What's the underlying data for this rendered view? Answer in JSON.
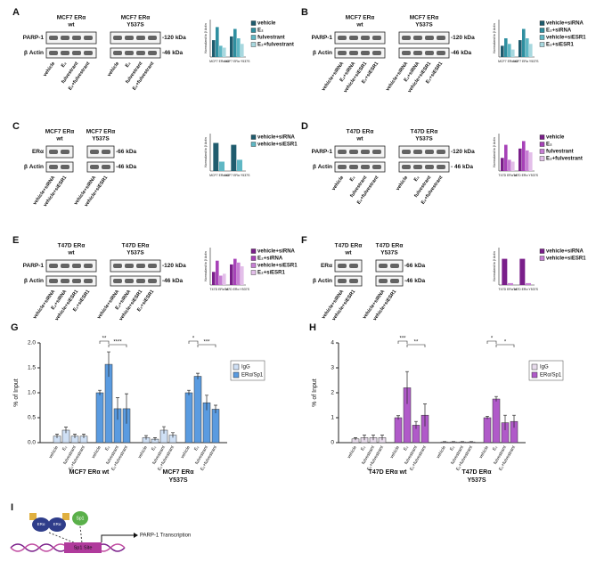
{
  "panels": [
    {
      "letter": "A",
      "blots": [
        [
          "MCF7 ERα",
          "wt"
        ],
        [
          "MCF7 ERα",
          "Y537S"
        ]
      ],
      "bands": [
        "PARP-1",
        "β Actin"
      ],
      "kda": [
        "-120 kDa",
        "-46 kDa"
      ],
      "lanes": [
        "vehicle",
        "E₂",
        "fulvestrant",
        "E₂+fulvestrant"
      ],
      "chart": {
        "type": "bar",
        "y_label": "Normalized to β Actin",
        "groups": [
          "MCF7 ERα wt",
          "MCF7 ERα Y537S"
        ],
        "ylim": [
          0,
          1
        ],
        "series": [
          {
            "name": "vehicle",
            "color": "#1f5c6e",
            "values": [
              0.45,
              0.55
            ]
          },
          {
            "name": "E₂",
            "color": "#2f8fa0",
            "values": [
              0.8,
              0.75
            ]
          },
          {
            "name": "fulvestrant",
            "color": "#5fb7c4",
            "values": [
              0.3,
              0.5
            ]
          },
          {
            "name": "E₂+fulvestrant",
            "color": "#a8d8df",
            "values": [
              0.25,
              0.35
            ]
          }
        ]
      }
    },
    {
      "letter": "B",
      "blots": [
        [
          "MCF7 ERα",
          "wt"
        ],
        [
          "MCF7 ERα",
          "Y537S"
        ]
      ],
      "bands": [
        "PARP-1",
        "β Actin"
      ],
      "kda": [
        "-120 kDa",
        "-46 kDa"
      ],
      "lanes": [
        "vehicle+siRNA",
        "E₂+siRNA",
        "vehicle+siESR1",
        "E₂+siESR1"
      ],
      "chart": {
        "type": "bar",
        "y_label": "Normalized to β Actin",
        "groups": [
          "MCF7 ERα wt",
          "MCF7 ERα Y537S"
        ],
        "ylim": [
          0,
          1
        ],
        "series": [
          {
            "name": "vehicle+siRNA",
            "color": "#1f5c6e",
            "values": [
              0.3,
              0.45
            ]
          },
          {
            "name": "E₂+siRNA",
            "color": "#2f8fa0",
            "values": [
              0.5,
              0.75
            ]
          },
          {
            "name": "vehicle+siESR1",
            "color": "#5fb7c4",
            "values": [
              0.35,
              0.5
            ]
          },
          {
            "name": "E₂+siESR1",
            "color": "#a8d8df",
            "values": [
              0.2,
              0.35
            ]
          }
        ]
      }
    },
    {
      "letter": "C",
      "blots": [
        [
          "MCF7 ERα",
          "wt"
        ],
        [
          "MCF7 ERα",
          "Y537S"
        ]
      ],
      "bands": [
        "ERα",
        "β Actin"
      ],
      "kda": [
        "-66 kDa",
        "-46 kDa"
      ],
      "lanes": [
        "vehicle+siRNA",
        "vehicle+siESR1"
      ],
      "chart": {
        "type": "bar",
        "y_label": "Normalized to β Actin",
        "groups": [
          "MCF7 ERα wt",
          "MCF7 ERα Y537S"
        ],
        "ylim": [
          0,
          1
        ],
        "series": [
          {
            "name": "vehicle+siRNA",
            "color": "#1f5c6e",
            "values": [
              0.75,
              0.7
            ]
          },
          {
            "name": "vehicle+siESR1",
            "color": "#5fb7c4",
            "values": [
              0.25,
              0.3
            ]
          }
        ]
      }
    },
    {
      "letter": "D",
      "blots": [
        [
          "T47D ERα",
          "wt"
        ],
        [
          "T47D ERα",
          "Y537S"
        ]
      ],
      "bands": [
        "PARP-1",
        "β Actin"
      ],
      "kda": [
        "-120 kDa",
        "- 46 kDa"
      ],
      "lanes": [
        "vehicle",
        "E₂",
        "fulvestrant",
        "E₂+fulvestrant"
      ],
      "chart": {
        "type": "bar",
        "y_label": "Normalized to β Actin",
        "groups": [
          "T47D ERα wt",
          "T47D ERα Y537S"
        ],
        "ylim": [
          0,
          1
        ],
        "series": [
          {
            "name": "vehicle",
            "color": "#7a1f8a",
            "values": [
              0.35,
              0.6
            ]
          },
          {
            "name": "E₂",
            "color": "#a742b8",
            "values": [
              0.7,
              0.8
            ]
          },
          {
            "name": "fulvestrant",
            "color": "#c77fd4",
            "values": [
              0.3,
              0.55
            ]
          },
          {
            "name": "E₂+fulvestrant",
            "color": "#e3bfe9",
            "values": [
              0.25,
              0.5
            ]
          }
        ]
      }
    },
    {
      "letter": "E",
      "blots": [
        [
          "T47D ERα",
          "wt"
        ],
        [
          "T47D ERα",
          "Y537S"
        ]
      ],
      "bands": [
        "PARP-1",
        "β Actin"
      ],
      "kda": [
        "-120 kDa",
        "-46 kDa"
      ],
      "lanes": [
        "vehicle+siRNA",
        "E₂+siRNA",
        "vehicle+siESR1",
        "E₂+siESR1"
      ],
      "chart": {
        "type": "bar",
        "y_label": "Normalized to β Actin",
        "groups": [
          "T47D ERα wt",
          "T47D ERα Y537S"
        ],
        "ylim": [
          0,
          1
        ],
        "series": [
          {
            "name": "vehicle+siRNA",
            "color": "#7a1f8a",
            "values": [
              0.35,
              0.55
            ]
          },
          {
            "name": "E₂+siRNA",
            "color": "#a742b8",
            "values": [
              0.65,
              0.7
            ]
          },
          {
            "name": "vehicle+siESR1",
            "color": "#c77fd4",
            "values": [
              0.25,
              0.6
            ]
          },
          {
            "name": "E₂+siESR1",
            "color": "#e3bfe9",
            "values": [
              0.3,
              0.5
            ]
          }
        ]
      }
    },
    {
      "letter": "F",
      "blots": [
        [
          "T47D ERα",
          "wt"
        ],
        [
          "T47D ERα",
          "Y537S"
        ]
      ],
      "bands": [
        "ERα",
        "β Actin"
      ],
      "kda": [
        "-66 kDa",
        "-46 kDa"
      ],
      "lanes": [
        "vehicle+siRNA",
        "vehicle+siESR1"
      ],
      "chart": {
        "type": "bar",
        "y_label": "Normalized to β Actin",
        "groups": [
          "T47D ERα wt",
          "T47D ERα Y537S"
        ],
        "ylim": [
          0,
          1
        ],
        "series": [
          {
            "name": "vehicle+siRNA",
            "color": "#7a1f8a",
            "values": [
              0.7,
              0.7
            ]
          },
          {
            "name": "vehicle+siESR1",
            "color": "#c77fd4",
            "values": [
              0.05,
              0.05
            ]
          }
        ]
      }
    }
  ],
  "charts": [
    {
      "type": "bar",
      "letter": "G",
      "y_label": "% of Input",
      "ylim": [
        0,
        2
      ],
      "yticks": [
        {
          "value": 0,
          "label": "0.0"
        },
        {
          "value": 0.5,
          "label": "0.5"
        },
        {
          "value": 1,
          "label": "1.0"
        },
        {
          "value": 1.5,
          "label": "1.5"
        },
        {
          "value": 2,
          "label": "2.0"
        }
      ],
      "categories": [
        "vehicle",
        "E₂",
        "fulvestrant",
        "E₂+fulvestrant"
      ],
      "groups": [
        [
          "MCF7 ERα wt"
        ],
        [
          "MCF7 ERα",
          "Y537S"
        ]
      ],
      "significance": [
        "**",
        "****",
        "*",
        "***"
      ],
      "series": [
        {
          "name": "IgG",
          "color": "#cfe0f5",
          "values": [
            [
              0.13,
              0.25,
              0.13,
              0.13
            ],
            [
              0.1,
              0.07,
              0.25,
              0.15
            ]
          ],
          "errors": [
            [
              0.04,
              0.06,
              0.04,
              0.04
            ],
            [
              0.04,
              0.03,
              0.07,
              0.05
            ]
          ]
        },
        {
          "name": "ERα/Sp1",
          "color": "#5a9be0",
          "values": [
            [
              1.0,
              1.57,
              0.68,
              0.68
            ],
            [
              1.0,
              1.33,
              0.8,
              0.67
            ]
          ],
          "errors": [
            [
              0.05,
              0.25,
              0.22,
              0.3
            ],
            [
              0.05,
              0.06,
              0.15,
              0.08
            ]
          ]
        }
      ]
    },
    {
      "type": "bar",
      "letter": "H",
      "y_label": "% of Input",
      "ylim": [
        0,
        4
      ],
      "yticks": [
        0,
        1,
        2,
        3,
        4
      ],
      "categories": [
        "vehicle",
        "E₂",
        "fulvestrant",
        "E₂+fulvestrant"
      ],
      "groups": [
        [
          "T47D ERα wt"
        ],
        [
          "T47D ERα",
          "Y537S"
        ]
      ],
      "significance": [
        "***",
        "**",
        "*",
        "*"
      ],
      "series": [
        {
          "name": "IgG",
          "color": "#e8dcec",
          "values": [
            [
              0.15,
              0.2,
              0.2,
              0.2
            ],
            [
              0.03,
              0.03,
              0.03,
              0.03
            ]
          ],
          "errors": [
            [
              0.05,
              0.1,
              0.1,
              0.1
            ],
            [
              0.01,
              0.01,
              0.01,
              0.01
            ]
          ]
        },
        {
          "name": "ERα/Sp1",
          "color": "#b05ac9",
          "values": [
            [
              1.0,
              2.2,
              0.7,
              1.1
            ],
            [
              1.0,
              1.75,
              0.8,
              0.85
            ]
          ],
          "errors": [
            [
              0.08,
              0.65,
              0.15,
              0.45
            ],
            [
              0.06,
              0.1,
              0.3,
              0.25
            ]
          ]
        }
      ]
    }
  ],
  "panel_I": {
    "letter": "I",
    "nodes": [
      "ERα",
      "ERα",
      "Sp1"
    ],
    "site": "Sp1 Site",
    "label": "PARP-1 Transcription"
  }
}
